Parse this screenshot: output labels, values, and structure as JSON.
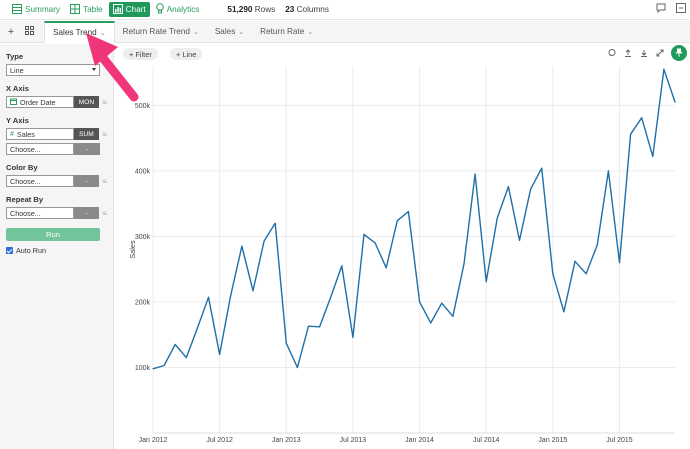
{
  "toolbar": {
    "summary_label": "Summary",
    "table_label": "Table",
    "chart_label": "Chart",
    "analytics_label": "Analytics",
    "rows_count": "51,290",
    "rows_label": "Rows",
    "cols_count": "23",
    "cols_label": "Columns",
    "icons": [
      "summary-icon",
      "table-icon",
      "chart-icon",
      "analytics-bulb-icon",
      "comment-icon",
      "collapse-icon"
    ]
  },
  "tabs": [
    {
      "label": "Sales Trend",
      "active": true
    },
    {
      "label": "Return Rate Trend",
      "active": false
    },
    {
      "label": "Sales",
      "active": false
    },
    {
      "label": "Return Rate",
      "active": false
    }
  ],
  "panel": {
    "type_label": "Type",
    "type_value": "Line",
    "xaxis_label": "X Axis",
    "xaxis_field": "Order Date",
    "xaxis_agg": "MON",
    "yaxis_label": "Y Axis",
    "yaxis_field": "Sales",
    "yaxis_agg": "SUM",
    "yaxis_choose": "Choose...",
    "colorby_label": "Color By",
    "colorby_choose": "Choose...",
    "repeatby_label": "Repeat By",
    "repeatby_choose": "Choose...",
    "run_label": "Run",
    "autorun_label": "Auto Run",
    "help_glyph": "?",
    "empty_agg": "-"
  },
  "chart_toolbar": {
    "filter_label": "+ Filter",
    "line_label": "+ Line"
  },
  "colors": {
    "accent": "#1f9a5a",
    "line": "#1f6fa8",
    "annotation_arrow": "#f0357a"
  },
  "chart_data": {
    "type": "line",
    "ylabel": "Sales",
    "ylim": [
      0,
      560000
    ],
    "yticks": [
      100000,
      200000,
      300000,
      400000,
      500000
    ],
    "ytick_labels": [
      "100k",
      "200k",
      "300k",
      "400k",
      "500k"
    ],
    "x_range": [
      "2012-01",
      "2015-12"
    ],
    "xticks": [
      "2012-01",
      "2012-07",
      "2013-01",
      "2013-07",
      "2014-01",
      "2014-07",
      "2015-01",
      "2015-07"
    ],
    "xtick_labels": [
      "Jan 2012",
      "Jul 2012",
      "Jan 2013",
      "Jul 2013",
      "Jan 2014",
      "Jul 2014",
      "Jan 2015",
      "Jul 2015"
    ],
    "grid": true,
    "x": [
      "2012-01",
      "2012-02",
      "2012-03",
      "2012-04",
      "2012-05",
      "2012-06",
      "2012-07",
      "2012-08",
      "2012-09",
      "2012-10",
      "2012-11",
      "2012-12",
      "2013-01",
      "2013-02",
      "2013-03",
      "2013-04",
      "2013-05",
      "2013-06",
      "2013-07",
      "2013-08",
      "2013-09",
      "2013-10",
      "2013-11",
      "2013-12",
      "2014-01",
      "2014-02",
      "2014-03",
      "2014-04",
      "2014-05",
      "2014-06",
      "2014-07",
      "2014-08",
      "2014-09",
      "2014-10",
      "2014-11",
      "2014-12",
      "2015-01",
      "2015-02",
      "2015-03",
      "2015-04",
      "2015-05",
      "2015-06",
      "2015-07",
      "2015-08",
      "2015-09",
      "2015-10",
      "2015-11",
      "2015-12"
    ],
    "series": [
      {
        "values": [
          98000,
          103000,
          135000,
          115000,
          160000,
          207000,
          120000,
          210000,
          285000,
          217000,
          293000,
          320000,
          137000,
          100000,
          163000,
          162000,
          207000,
          255000,
          146000,
          303000,
          290000,
          252000,
          324000,
          338000,
          200000,
          168000,
          198000,
          178000,
          258000,
          395000,
          231000,
          328000,
          376000,
          294000,
          372000,
          404000,
          243000,
          185000,
          262000,
          243000,
          287000,
          400000,
          260000,
          456000,
          481000,
          422000,
          555000,
          505000
        ]
      }
    ]
  }
}
